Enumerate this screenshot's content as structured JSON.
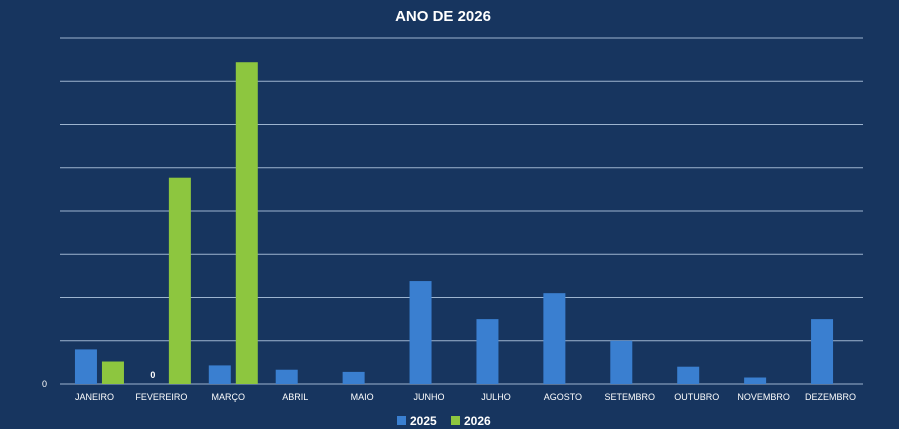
{
  "chart_data": {
    "type": "bar",
    "title": "ANO DE 2026",
    "categories": [
      "JANEIRO",
      "FEVEREIRO",
      "MARÇO",
      "ABRIL",
      "MAIO",
      "JUNHO",
      "JULHO",
      "AGOSTO",
      "SETEMBRO",
      "OUTUBRO",
      "NOVEMBRO",
      "DEZEMBRO"
    ],
    "series": [
      {
        "name": "2025",
        "color": "#3a7fd0",
        "values": [
          8,
          0,
          4.3,
          3.3,
          2.8,
          23.8,
          15,
          21,
          10,
          4,
          1.5,
          15
        ]
      },
      {
        "name": "2026",
        "color": "#8dc63f",
        "values": [
          5.2,
          47.7,
          74.4,
          null,
          null,
          null,
          null,
          null,
          null,
          null,
          null,
          null
        ]
      }
    ],
    "ylim": [
      0,
      80
    ],
    "y_tick_labels": [
      "0"
    ],
    "data_labels": [
      {
        "series": "2025",
        "category": "FEVEREIRO",
        "text": "0"
      }
    ],
    "grid": true,
    "legend": "bottom"
  }
}
